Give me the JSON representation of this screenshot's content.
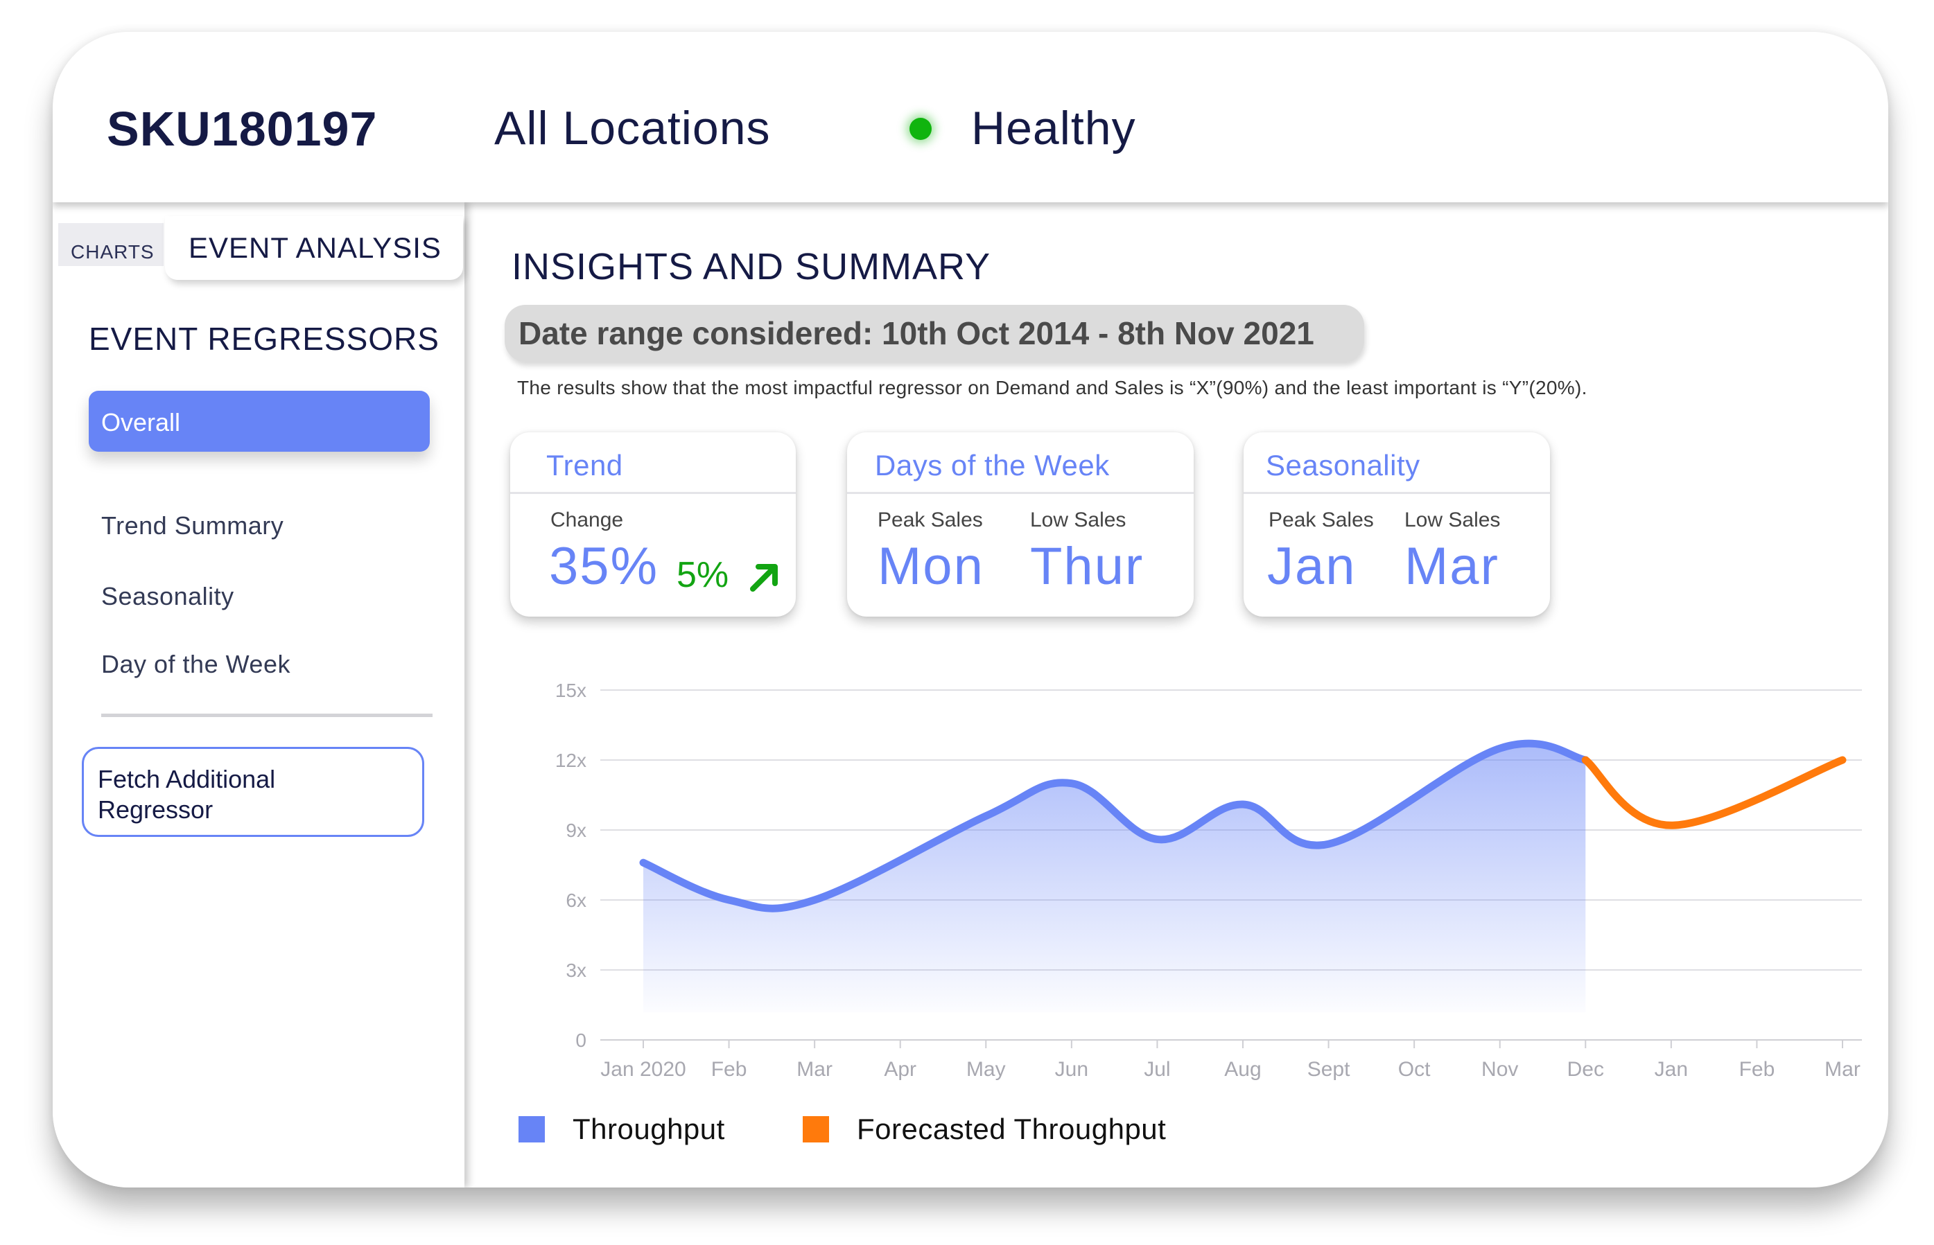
{
  "header": {
    "sku": "SKU180197",
    "location": "All Locations",
    "status": "Healthy",
    "status_color": "#10b40e"
  },
  "sidebar": {
    "tabs": [
      "CHARTS",
      "EVENT ANALYSIS"
    ],
    "section_title": "EVENT REGRESSORS",
    "items": [
      "Overall",
      "Trend Summary",
      "Seasonality",
      "Day of the Week"
    ],
    "selected": "Overall",
    "fetch_button": [
      "Fetch Additional",
      "Regressor"
    ]
  },
  "main": {
    "title": "INSIGHTS AND SUMMARY",
    "date_range": "Date range considered: 10th Oct 2014 - 8th Nov 2021",
    "summary": "The results show that the most impactful regressor on Demand and Sales is “X”(90%) and the least important is “Y”(20%).",
    "cards": {
      "trend": {
        "title": "Trend",
        "label": "Change",
        "value": "35%",
        "delta": "5%",
        "delta_icon": "arrow-up-right-icon"
      },
      "days": {
        "title": "Days of the Week",
        "peak_label": "Peak Sales",
        "low_label": "Low Sales",
        "peak": "Mon",
        "low": "Thur"
      },
      "season": {
        "title": "Seasonality",
        "peak_label": "Peak Sales",
        "low_label": "Low Sales",
        "peak": "Jan",
        "low": "Mar"
      }
    }
  },
  "colors": {
    "accent": "#6784f6",
    "forecast": "#ff7a0c",
    "positive": "#12a412"
  },
  "chart_data": {
    "type": "area",
    "categories": [
      "Jan 2020",
      "Feb",
      "Mar",
      "Apr",
      "May",
      "Jun",
      "Jul",
      "Aug",
      "Sept",
      "Oct",
      "Nov",
      "Dec",
      "Jan",
      "Feb",
      "Mar"
    ],
    "y_tick_labels": [
      "0",
      "3x",
      "6x",
      "9x",
      "12x",
      "15x"
    ],
    "ylim": [
      0,
      15
    ],
    "grid": true,
    "series": [
      {
        "name": "Throughput",
        "color": "#6784f6",
        "points": [
          [
            0,
            7.6
          ],
          [
            1,
            6.0
          ],
          [
            2,
            6.0
          ],
          [
            4,
            9.6
          ],
          [
            5,
            11.0
          ],
          [
            6,
            8.6
          ],
          [
            7,
            10.1
          ],
          [
            8,
            8.4
          ],
          [
            10,
            12.5
          ],
          [
            11,
            12.0
          ]
        ]
      },
      {
        "name": "Forecasted Throughput",
        "color": "#ff7a0c",
        "points": [
          [
            11,
            12.0
          ],
          [
            12,
            9.2
          ],
          [
            14,
            12.0
          ]
        ]
      }
    ],
    "legend_position": "bottom-left"
  }
}
